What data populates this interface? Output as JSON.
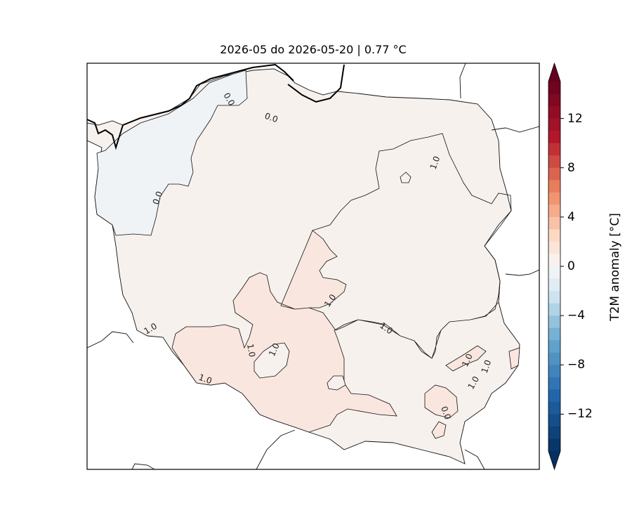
{
  "title": "2026-05 do 2026-05-20 | 0.77 °C",
  "colorbar": {
    "label": "T2M anomaly [°C]",
    "ticks": [
      "12",
      "8",
      "4",
      "0",
      "−4",
      "−8",
      "−12"
    ],
    "range": [
      -15,
      15
    ],
    "extend": "both",
    "colors": {
      "max": "#67001f",
      "high": "#b2182b",
      "warm": "#ef8a62",
      "light_warm": "#fddbc7",
      "neutral": "#f7f7f7",
      "light_cool": "#d1e5f0",
      "cool": "#67a9cf",
      "cold": "#2166ac",
      "min": "#053061"
    }
  },
  "contour_labels": [
    "0.0",
    "0.0",
    "0.0",
    "1.0",
    "1.0",
    "1.0",
    "1.0",
    "1.0",
    "1.0",
    "1.0",
    "1.0",
    "1.0",
    "1.0",
    "0.0"
  ],
  "fill_colors": {
    "below_zero": "#eff3f6",
    "zero_to_one": "#f7f1ee",
    "above_one": "#f9e6de"
  }
}
